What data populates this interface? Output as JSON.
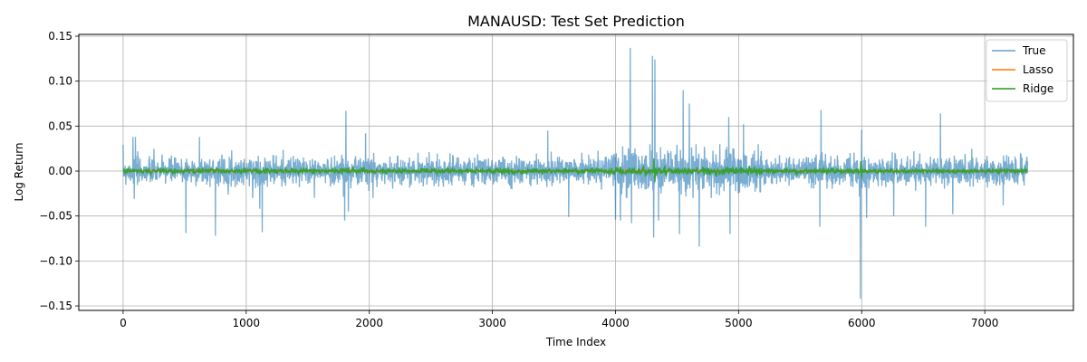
{
  "chart_data": {
    "type": "line",
    "title": "MANAUSD: Test Set Prediction",
    "xlabel": "Time Index",
    "ylabel": "Log Return",
    "xlim": [
      -360,
      7720
    ],
    "ylim": [
      -0.155,
      0.152
    ],
    "xticks": [
      0,
      1000,
      2000,
      3000,
      4000,
      5000,
      6000,
      7000
    ],
    "xtick_labels": [
      "0",
      "1000",
      "2000",
      "3000",
      "4000",
      "5000",
      "6000",
      "7000"
    ],
    "yticks": [
      -0.15,
      -0.1,
      -0.05,
      0.0,
      0.05,
      0.1,
      0.15
    ],
    "ytick_labels": [
      "−0.15",
      "−0.10",
      "−0.05",
      "0.00",
      "0.05",
      "0.10",
      "0.15"
    ],
    "grid": true,
    "legend_position": "top-right",
    "n_points": 7350,
    "series": [
      {
        "name": "True",
        "color": "#1f77b4",
        "alpha": 0.6,
        "typical_range": [
          -0.02,
          0.02
        ],
        "spikes": [
          {
            "x": 80,
            "y": 0.038
          },
          {
            "x": 90,
            "y": -0.031
          },
          {
            "x": 100,
            "y": 0.038
          },
          {
            "x": 510,
            "y": -0.069
          },
          {
            "x": 620,
            "y": 0.038
          },
          {
            "x": 750,
            "y": -0.072
          },
          {
            "x": 1110,
            "y": -0.042
          },
          {
            "x": 1130,
            "y": -0.068
          },
          {
            "x": 1800,
            "y": -0.055
          },
          {
            "x": 1810,
            "y": 0.067
          },
          {
            "x": 1830,
            "y": -0.045
          },
          {
            "x": 1970,
            "y": 0.042
          },
          {
            "x": 2030,
            "y": -0.03
          },
          {
            "x": 3450,
            "y": 0.045
          },
          {
            "x": 3620,
            "y": -0.051
          },
          {
            "x": 4000,
            "y": -0.054
          },
          {
            "x": 4040,
            "y": -0.055
          },
          {
            "x": 4120,
            "y": 0.137
          },
          {
            "x": 4130,
            "y": -0.058
          },
          {
            "x": 4300,
            "y": 0.128
          },
          {
            "x": 4320,
            "y": 0.124
          },
          {
            "x": 4310,
            "y": -0.074
          },
          {
            "x": 4350,
            "y": -0.055
          },
          {
            "x": 4520,
            "y": -0.07
          },
          {
            "x": 4550,
            "y": 0.09
          },
          {
            "x": 4600,
            "y": 0.075
          },
          {
            "x": 4680,
            "y": -0.084
          },
          {
            "x": 4920,
            "y": 0.06
          },
          {
            "x": 4930,
            "y": -0.07
          },
          {
            "x": 5040,
            "y": 0.052
          },
          {
            "x": 5660,
            "y": -0.062
          },
          {
            "x": 5670,
            "y": 0.068
          },
          {
            "x": 5990,
            "y": -0.142
          },
          {
            "x": 6000,
            "y": 0.046
          },
          {
            "x": 6040,
            "y": -0.052
          },
          {
            "x": 6260,
            "y": -0.05
          },
          {
            "x": 6520,
            "y": -0.062
          },
          {
            "x": 6640,
            "y": 0.064
          },
          {
            "x": 6740,
            "y": -0.048
          },
          {
            "x": 7150,
            "y": -0.038
          }
        ]
      },
      {
        "name": "Lasso",
        "color": "#ff7f0e",
        "alpha": 0.9,
        "typical_range": [
          -0.001,
          0.001
        ]
      },
      {
        "name": "Ridge",
        "color": "#2ca02c",
        "alpha": 0.9,
        "typical_range": [
          -0.003,
          0.003
        ],
        "spikes": [
          {
            "x": 4310,
            "y": 0.014
          },
          {
            "x": 4320,
            "y": -0.012
          },
          {
            "x": 5990,
            "y": 0.011
          },
          {
            "x": 6000,
            "y": -0.008
          }
        ]
      }
    ]
  }
}
